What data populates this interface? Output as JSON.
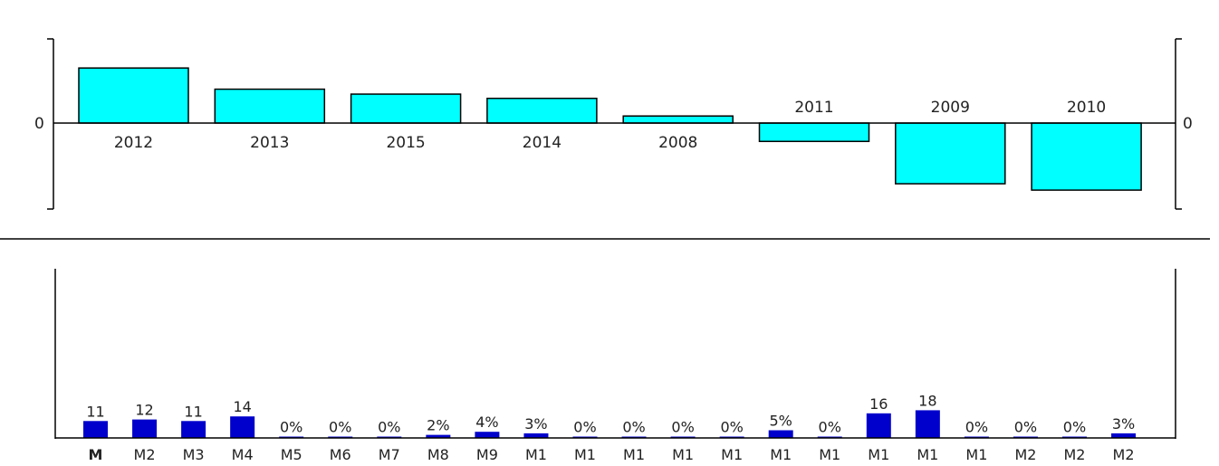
{
  "chart_data": [
    {
      "type": "bar",
      "zero_label_left": "0",
      "zero_label_right": "0",
      "categories": [
        "2012",
        "2013",
        "2015",
        "2014",
        "2008",
        "2011",
        "2009",
        "2010"
      ],
      "values": [
        78,
        48,
        41,
        35,
        10,
        -26,
        -86,
        -95
      ],
      "ylim": [
        -100,
        100
      ],
      "bar_color": "#00ffff",
      "grid": false
    },
    {
      "type": "bar",
      "categories": [
        "M",
        "M2",
        "M3",
        "M4",
        "M5",
        "M6",
        "M7",
        "M8",
        "M9",
        "M1",
        "M1",
        "M1",
        "M1",
        "M1",
        "M1",
        "M1",
        "M1",
        "M1",
        "M1",
        "M2",
        "M2",
        "M2"
      ],
      "values": [
        11,
        12,
        11,
        14,
        0,
        0,
        0,
        2,
        4,
        3,
        0,
        0,
        0,
        0,
        5,
        0,
        16,
        18,
        0,
        0,
        0,
        3
      ],
      "value_labels": [
        "11",
        "12",
        "11",
        "14",
        "0%",
        "0%",
        "0%",
        "2%",
        "4%",
        "3%",
        "0%",
        "0%",
        "0%",
        "0%",
        "5%",
        "0%",
        "16",
        "18",
        "0%",
        "0%",
        "0%",
        "3%"
      ],
      "ylim": [
        0,
        100
      ],
      "bar_color": "#0000cc",
      "grid": false
    }
  ]
}
